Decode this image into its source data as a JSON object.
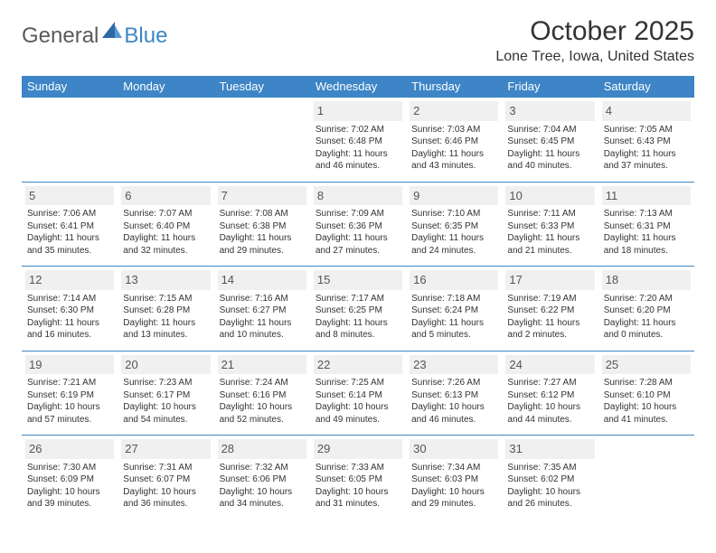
{
  "brand": {
    "text1": "General",
    "text2": "Blue"
  },
  "title": "October 2025",
  "location": "Lone Tree, Iowa, United States",
  "colors": {
    "header_bg": "#3d85c6",
    "header_text": "#ffffff",
    "daynum_bg": "#f0f0f0",
    "border": "#3d85c6",
    "logo_blue": "#3d85c6",
    "logo_gray": "#5a5a5a",
    "body_text": "#333333"
  },
  "day_names": [
    "Sunday",
    "Monday",
    "Tuesday",
    "Wednesday",
    "Thursday",
    "Friday",
    "Saturday"
  ],
  "weeks": [
    [
      {
        "n": "",
        "sunrise": "",
        "sunset": "",
        "daylight": ""
      },
      {
        "n": "",
        "sunrise": "",
        "sunset": "",
        "daylight": ""
      },
      {
        "n": "",
        "sunrise": "",
        "sunset": "",
        "daylight": ""
      },
      {
        "n": "1",
        "sunrise": "Sunrise: 7:02 AM",
        "sunset": "Sunset: 6:48 PM",
        "daylight": "Daylight: 11 hours and 46 minutes."
      },
      {
        "n": "2",
        "sunrise": "Sunrise: 7:03 AM",
        "sunset": "Sunset: 6:46 PM",
        "daylight": "Daylight: 11 hours and 43 minutes."
      },
      {
        "n": "3",
        "sunrise": "Sunrise: 7:04 AM",
        "sunset": "Sunset: 6:45 PM",
        "daylight": "Daylight: 11 hours and 40 minutes."
      },
      {
        "n": "4",
        "sunrise": "Sunrise: 7:05 AM",
        "sunset": "Sunset: 6:43 PM",
        "daylight": "Daylight: 11 hours and 37 minutes."
      }
    ],
    [
      {
        "n": "5",
        "sunrise": "Sunrise: 7:06 AM",
        "sunset": "Sunset: 6:41 PM",
        "daylight": "Daylight: 11 hours and 35 minutes."
      },
      {
        "n": "6",
        "sunrise": "Sunrise: 7:07 AM",
        "sunset": "Sunset: 6:40 PM",
        "daylight": "Daylight: 11 hours and 32 minutes."
      },
      {
        "n": "7",
        "sunrise": "Sunrise: 7:08 AM",
        "sunset": "Sunset: 6:38 PM",
        "daylight": "Daylight: 11 hours and 29 minutes."
      },
      {
        "n": "8",
        "sunrise": "Sunrise: 7:09 AM",
        "sunset": "Sunset: 6:36 PM",
        "daylight": "Daylight: 11 hours and 27 minutes."
      },
      {
        "n": "9",
        "sunrise": "Sunrise: 7:10 AM",
        "sunset": "Sunset: 6:35 PM",
        "daylight": "Daylight: 11 hours and 24 minutes."
      },
      {
        "n": "10",
        "sunrise": "Sunrise: 7:11 AM",
        "sunset": "Sunset: 6:33 PM",
        "daylight": "Daylight: 11 hours and 21 minutes."
      },
      {
        "n": "11",
        "sunrise": "Sunrise: 7:13 AM",
        "sunset": "Sunset: 6:31 PM",
        "daylight": "Daylight: 11 hours and 18 minutes."
      }
    ],
    [
      {
        "n": "12",
        "sunrise": "Sunrise: 7:14 AM",
        "sunset": "Sunset: 6:30 PM",
        "daylight": "Daylight: 11 hours and 16 minutes."
      },
      {
        "n": "13",
        "sunrise": "Sunrise: 7:15 AM",
        "sunset": "Sunset: 6:28 PM",
        "daylight": "Daylight: 11 hours and 13 minutes."
      },
      {
        "n": "14",
        "sunrise": "Sunrise: 7:16 AM",
        "sunset": "Sunset: 6:27 PM",
        "daylight": "Daylight: 11 hours and 10 minutes."
      },
      {
        "n": "15",
        "sunrise": "Sunrise: 7:17 AM",
        "sunset": "Sunset: 6:25 PM",
        "daylight": "Daylight: 11 hours and 8 minutes."
      },
      {
        "n": "16",
        "sunrise": "Sunrise: 7:18 AM",
        "sunset": "Sunset: 6:24 PM",
        "daylight": "Daylight: 11 hours and 5 minutes."
      },
      {
        "n": "17",
        "sunrise": "Sunrise: 7:19 AM",
        "sunset": "Sunset: 6:22 PM",
        "daylight": "Daylight: 11 hours and 2 minutes."
      },
      {
        "n": "18",
        "sunrise": "Sunrise: 7:20 AM",
        "sunset": "Sunset: 6:20 PM",
        "daylight": "Daylight: 11 hours and 0 minutes."
      }
    ],
    [
      {
        "n": "19",
        "sunrise": "Sunrise: 7:21 AM",
        "sunset": "Sunset: 6:19 PM",
        "daylight": "Daylight: 10 hours and 57 minutes."
      },
      {
        "n": "20",
        "sunrise": "Sunrise: 7:23 AM",
        "sunset": "Sunset: 6:17 PM",
        "daylight": "Daylight: 10 hours and 54 minutes."
      },
      {
        "n": "21",
        "sunrise": "Sunrise: 7:24 AM",
        "sunset": "Sunset: 6:16 PM",
        "daylight": "Daylight: 10 hours and 52 minutes."
      },
      {
        "n": "22",
        "sunrise": "Sunrise: 7:25 AM",
        "sunset": "Sunset: 6:14 PM",
        "daylight": "Daylight: 10 hours and 49 minutes."
      },
      {
        "n": "23",
        "sunrise": "Sunrise: 7:26 AM",
        "sunset": "Sunset: 6:13 PM",
        "daylight": "Daylight: 10 hours and 46 minutes."
      },
      {
        "n": "24",
        "sunrise": "Sunrise: 7:27 AM",
        "sunset": "Sunset: 6:12 PM",
        "daylight": "Daylight: 10 hours and 44 minutes."
      },
      {
        "n": "25",
        "sunrise": "Sunrise: 7:28 AM",
        "sunset": "Sunset: 6:10 PM",
        "daylight": "Daylight: 10 hours and 41 minutes."
      }
    ],
    [
      {
        "n": "26",
        "sunrise": "Sunrise: 7:30 AM",
        "sunset": "Sunset: 6:09 PM",
        "daylight": "Daylight: 10 hours and 39 minutes."
      },
      {
        "n": "27",
        "sunrise": "Sunrise: 7:31 AM",
        "sunset": "Sunset: 6:07 PM",
        "daylight": "Daylight: 10 hours and 36 minutes."
      },
      {
        "n": "28",
        "sunrise": "Sunrise: 7:32 AM",
        "sunset": "Sunset: 6:06 PM",
        "daylight": "Daylight: 10 hours and 34 minutes."
      },
      {
        "n": "29",
        "sunrise": "Sunrise: 7:33 AM",
        "sunset": "Sunset: 6:05 PM",
        "daylight": "Daylight: 10 hours and 31 minutes."
      },
      {
        "n": "30",
        "sunrise": "Sunrise: 7:34 AM",
        "sunset": "Sunset: 6:03 PM",
        "daylight": "Daylight: 10 hours and 29 minutes."
      },
      {
        "n": "31",
        "sunrise": "Sunrise: 7:35 AM",
        "sunset": "Sunset: 6:02 PM",
        "daylight": "Daylight: 10 hours and 26 minutes."
      },
      {
        "n": "",
        "sunrise": "",
        "sunset": "",
        "daylight": ""
      }
    ]
  ]
}
